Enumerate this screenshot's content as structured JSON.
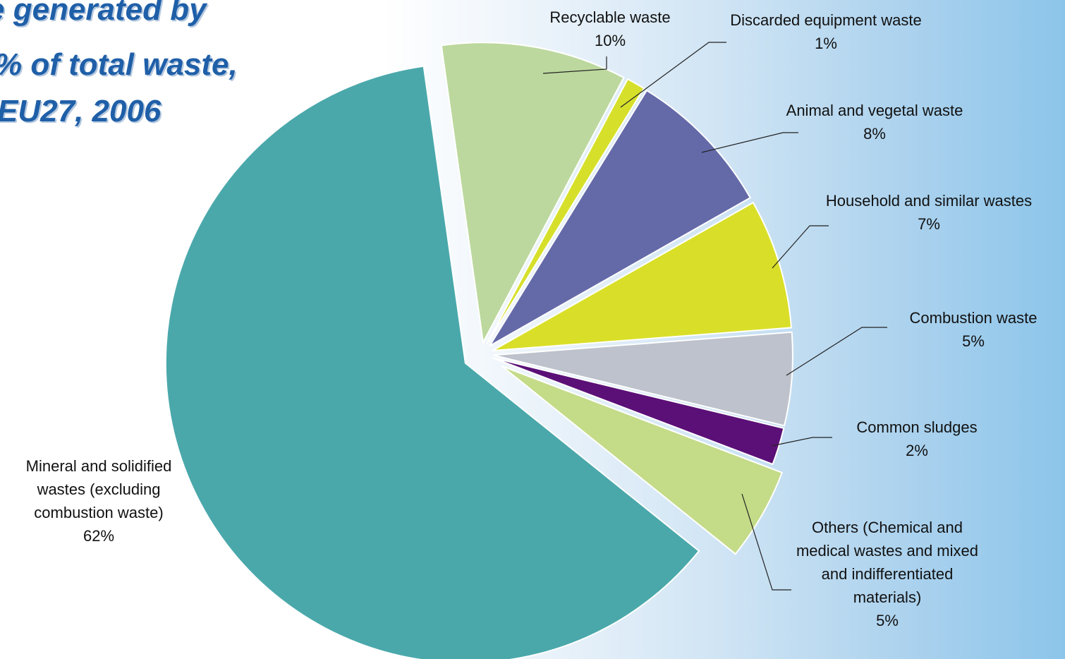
{
  "title_lines": [
    "e generated by",
    "% of total waste,",
    "EU27, 2006"
  ],
  "chart_data": {
    "type": "pie",
    "title": "e generated by % of total waste, EU27, 2006",
    "slices": [
      {
        "label": "Recyclable waste",
        "value": 10,
        "pct": "10%",
        "color": "#bcd89e"
      },
      {
        "label": "Discarded equipment waste",
        "value": 1,
        "pct": "1%",
        "color": "#d6e02b"
      },
      {
        "label": "Animal and vegetal waste",
        "value": 8,
        "pct": "8%",
        "color": "#646aa8"
      },
      {
        "label": "Household and similar wastes",
        "value": 7,
        "pct": "7%",
        "color": "#d9df28"
      },
      {
        "label": "Combustion waste",
        "value": 5,
        "pct": "5%",
        "color": "#bdc2cc"
      },
      {
        "label": "Common sludges",
        "value": 2,
        "pct": "2%",
        "color": "#5b1077"
      },
      {
        "label": "Others (Chemical and medical wastes and mixed and indifferentiated materials)",
        "value": 5,
        "pct": "5%",
        "color": "#c4db88"
      },
      {
        "label": "Mineral and solidified wastes (excluding combustion waste)",
        "value": 62,
        "pct": "62%",
        "color": "#4aa8ab"
      }
    ]
  }
}
